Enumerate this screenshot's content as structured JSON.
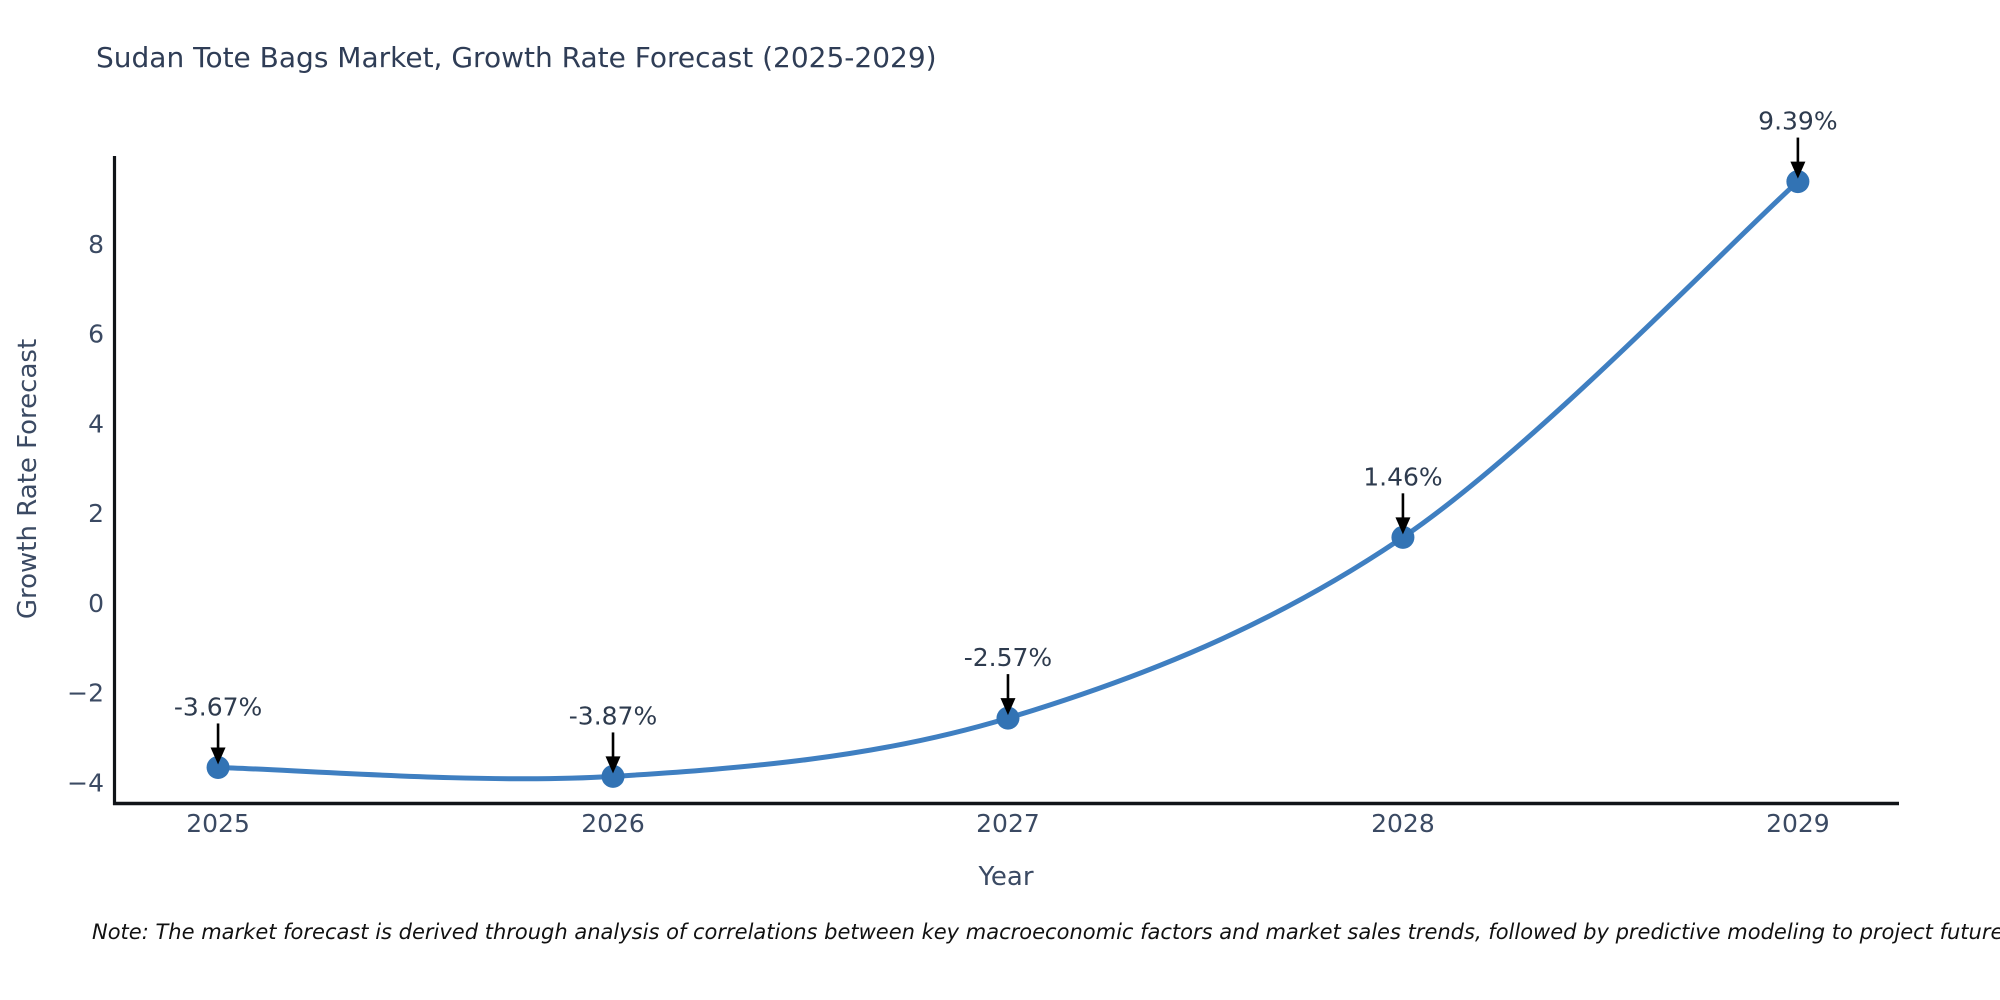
{
  "title": "Sudan Tote Bags Market, Growth Rate Forecast (2025-2029)",
  "note": "Note: The market forecast is derived through analysis of correlations between key macroeconomic factors and market sales trends, followed by predictive modeling to project future sales",
  "colors": {
    "line": "#3f7fc1",
    "marker": "#3273b4",
    "spine": "#111418",
    "title_text": "#2f3d56",
    "tick_text": "#3b4a63",
    "axis_title_text": "#3b4a63",
    "annotation_text": "#2e3b4e",
    "arrow": "#000000",
    "note_text": "#111111",
    "background": "#ffffff"
  },
  "chart_data": {
    "type": "line",
    "title": "Sudan Tote Bags Market, Growth Rate Forecast (2025-2029)",
    "xlabel": "Year",
    "ylabel": "Growth Rate Forecast",
    "x": [
      2025,
      2026,
      2027,
      2028,
      2029
    ],
    "y": [
      -3.67,
      -3.87,
      -2.57,
      1.46,
      9.39
    ],
    "point_labels": [
      "-3.67%",
      "-3.87%",
      "-2.57%",
      "1.46%",
      "9.39%"
    ],
    "xticks": [
      "2025",
      "2026",
      "2027",
      "2028",
      "2029"
    ],
    "yticks": [
      8,
      6,
      4,
      2,
      0,
      -2,
      -4
    ],
    "ytick_labels": [
      "8",
      "6",
      "4",
      "2",
      "0",
      "−2",
      "−4"
    ],
    "xlim": [
      2024.734,
      2029.256
    ],
    "ylim": [
      -4.44,
      9.96
    ],
    "grid": false,
    "legend": "none",
    "smooth": true,
    "marker_radius": 11.5,
    "line_width": 5
  }
}
